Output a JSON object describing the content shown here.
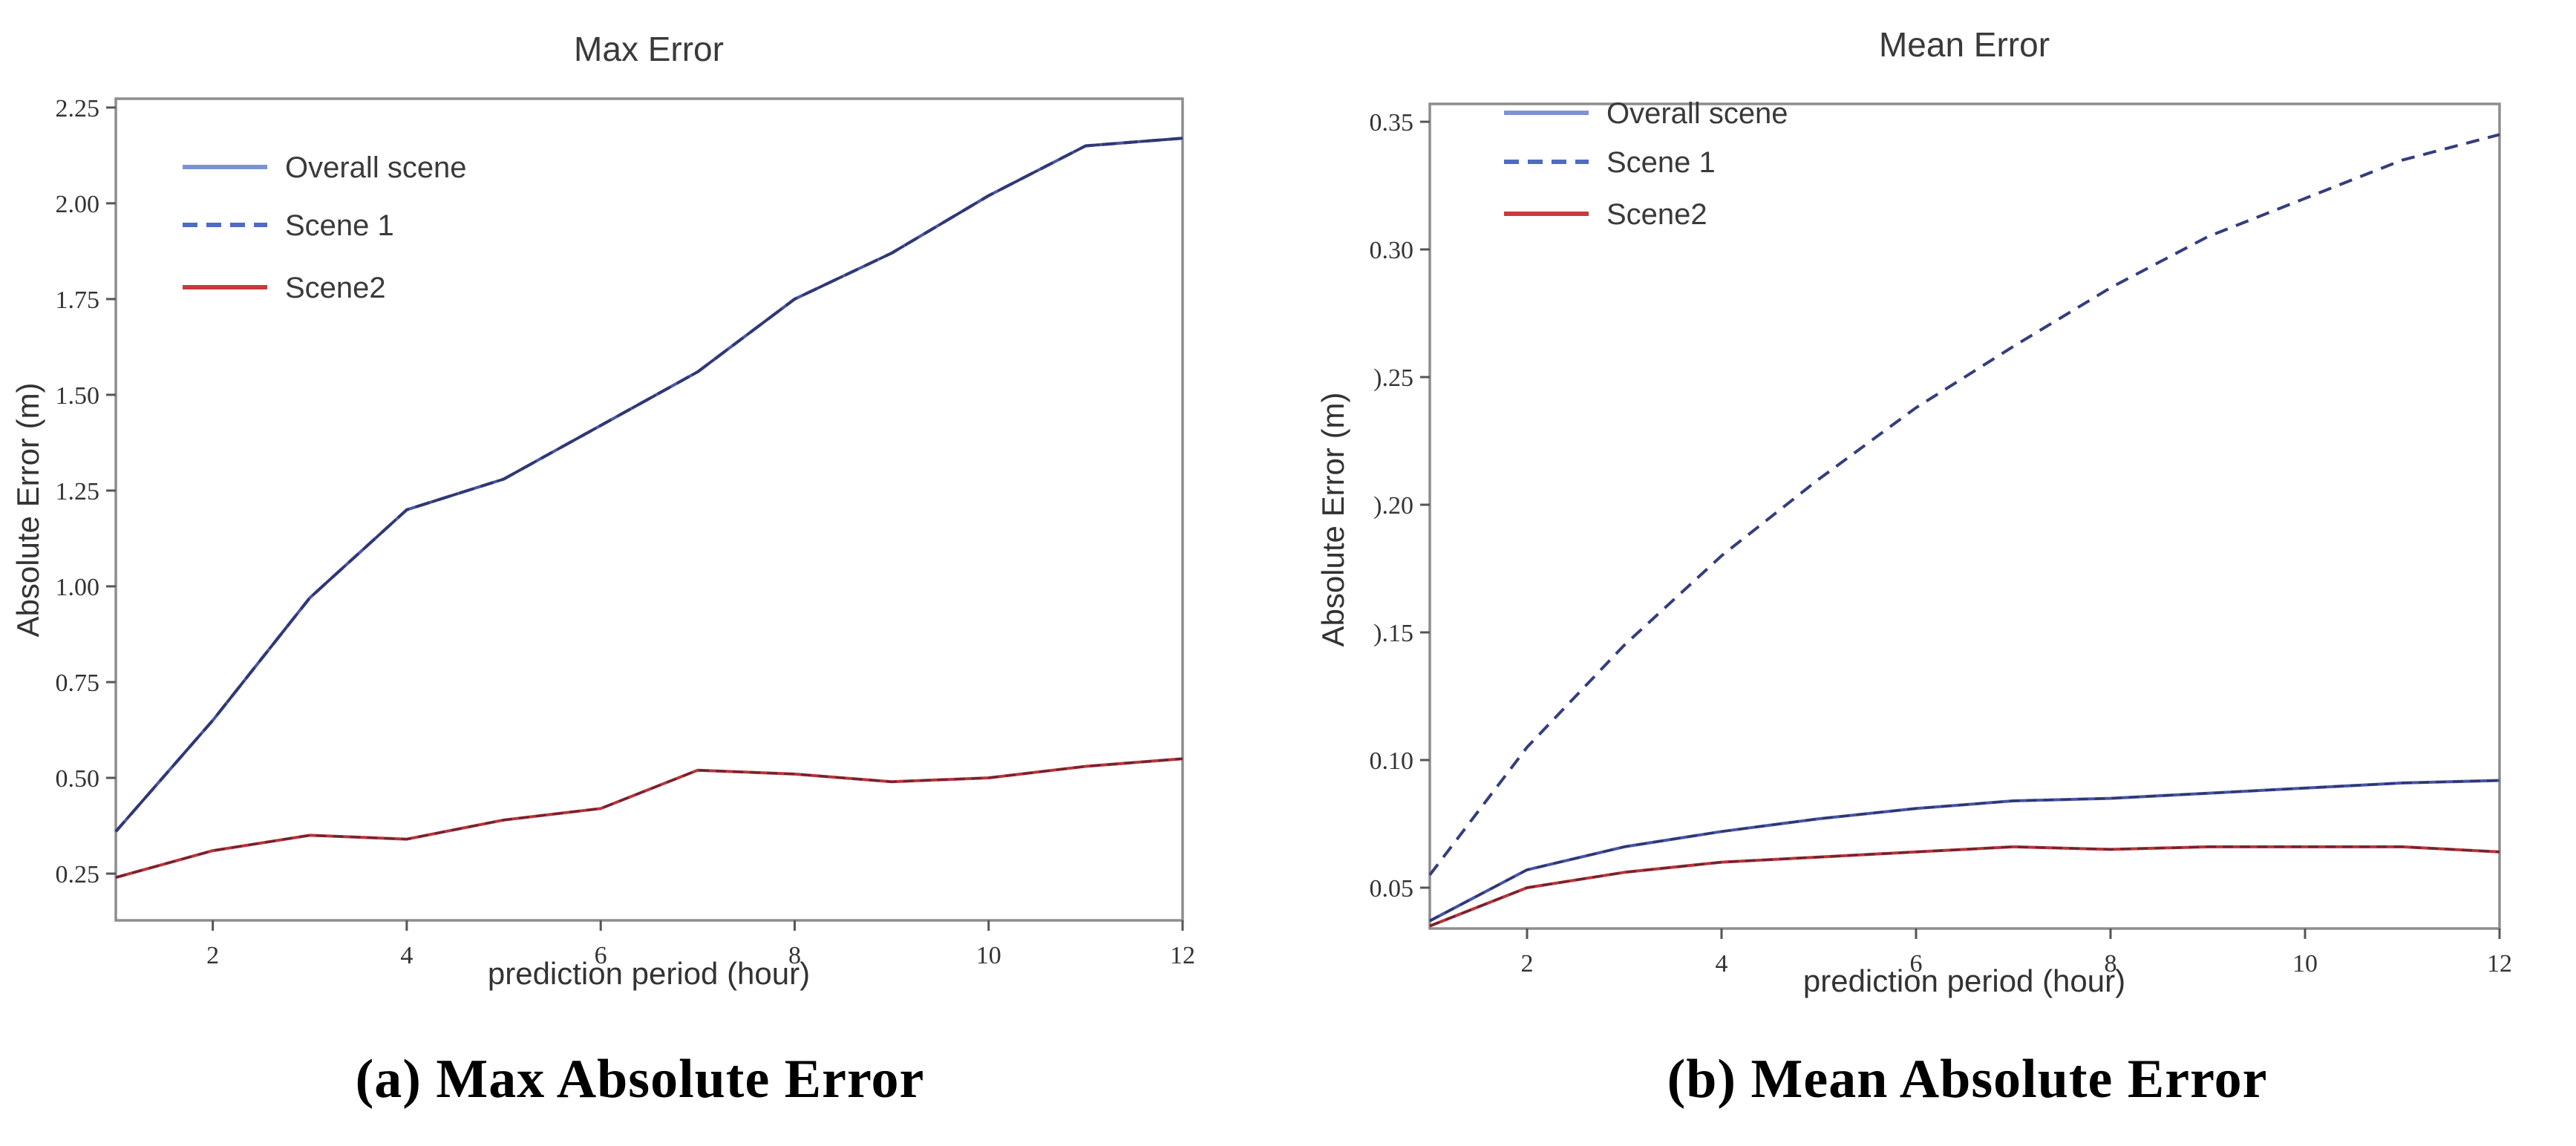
{
  "figure_background": "#ffffff",
  "spine_color": "#8d8d8d",
  "tick_color": "#555555",
  "text_color": "#333333",
  "legend_text_color": "#3a3a3a",
  "chart_data": [
    {
      "type": "line",
      "title": "Max Error",
      "xlabel": "prediction period (hour)",
      "ylabel": "Absolute Error (m)",
      "caption": "(a) Max Absolute Error",
      "x": [
        1,
        2,
        3,
        4,
        5,
        6,
        7,
        8,
        9,
        10,
        11,
        12
      ],
      "xlim": [
        1,
        12
      ],
      "ylim": [
        0.128,
        2.273
      ],
      "xticks": [
        {
          "v": 2,
          "label": "2"
        },
        {
          "v": 4,
          "label": "4"
        },
        {
          "v": 6,
          "label": "6"
        },
        {
          "v": 8,
          "label": "8"
        },
        {
          "v": 10,
          "label": "10"
        },
        {
          "v": 12,
          "label": "12"
        }
      ],
      "yticks": [
        {
          "v": 0.25,
          "label": "0.25"
        },
        {
          "v": 0.5,
          "label": "0.50"
        },
        {
          "v": 0.75,
          "label": "0.75"
        },
        {
          "v": 1.0,
          "label": "1.00"
        },
        {
          "v": 1.25,
          "label": "1.25"
        },
        {
          "v": 1.5,
          "label": "1.50"
        },
        {
          "v": 1.75,
          "label": "1.75"
        },
        {
          "v": 2.0,
          "label": "2.00"
        },
        {
          "v": 2.25,
          "label": "2.25"
        }
      ],
      "grid": false,
      "legend_position": "upper-left",
      "series": [
        {
          "name": "Overall scene",
          "style": "solid",
          "color": "#4a56a6",
          "legend_color": "#7d93d1",
          "values": [
            0.36,
            0.65,
            0.97,
            1.2,
            1.28,
            1.42,
            1.56,
            1.75,
            1.87,
            2.02,
            2.15,
            2.17
          ]
        },
        {
          "name": "Scene 1",
          "style": "dashed",
          "color": "#2f3876",
          "legend_color": "#4d6cc2",
          "values": [
            0.36,
            0.65,
            0.97,
            1.2,
            1.28,
            1.42,
            1.56,
            1.75,
            1.87,
            2.02,
            2.15,
            2.17
          ],
          "note": "overlaps Overall scene curve"
        },
        {
          "name": "Scene2",
          "style": "solid",
          "color": "#bb3438",
          "legend_color": "#c83a3d",
          "values": [
            0.24,
            0.31,
            0.35,
            0.34,
            0.39,
            0.42,
            0.52,
            0.51,
            0.49,
            0.5,
            0.53,
            0.55
          ]
        }
      ]
    },
    {
      "type": "line",
      "title": "Mean Error",
      "xlabel": "prediction period (hour)",
      "ylabel": "Absolute Error (m)",
      "caption": "(b) Mean Absolute Error",
      "x": [
        1,
        2,
        3,
        4,
        5,
        6,
        7,
        8,
        9,
        10,
        11,
        12
      ],
      "xlim": [
        1,
        12
      ],
      "ylim": [
        0.034,
        0.357
      ],
      "xticks": [
        {
          "v": 2,
          "label": "2"
        },
        {
          "v": 4,
          "label": "4"
        },
        {
          "v": 6,
          "label": "6"
        },
        {
          "v": 8,
          "label": "8"
        },
        {
          "v": 10,
          "label": "10"
        },
        {
          "v": 12,
          "label": "12"
        }
      ],
      "yticks": [
        {
          "v": 0.05,
          "label": "0.05"
        },
        {
          "v": 0.1,
          "label": "0.10"
        },
        {
          "v": 0.15,
          "label": ").15"
        },
        {
          "v": 0.2,
          "label": ").20"
        },
        {
          "v": 0.25,
          "label": ").25"
        },
        {
          "v": 0.3,
          "label": "0.30"
        },
        {
          "v": 0.35,
          "label": "0.35"
        }
      ],
      "grid": false,
      "legend_position": "upper-left",
      "series": [
        {
          "name": "Overall scene",
          "style": "solid",
          "color": "#4456a8",
          "legend_color": "#7d93d1",
          "values": [
            0.037,
            0.057,
            0.066,
            0.072,
            0.077,
            0.081,
            0.084,
            0.085,
            0.087,
            0.089,
            0.091,
            0.092
          ]
        },
        {
          "name": "Scene 1",
          "style": "dashed",
          "color": "#343d7e",
          "legend_color": "#4d6cc2",
          "values": [
            0.055,
            0.105,
            0.145,
            0.18,
            0.21,
            0.238,
            0.262,
            0.285,
            0.305,
            0.32,
            0.335,
            0.345
          ]
        },
        {
          "name": "Scene2",
          "style": "solid",
          "color": "#bb3438",
          "legend_color": "#c83a3d",
          "values": [
            0.035,
            0.05,
            0.056,
            0.06,
            0.062,
            0.064,
            0.066,
            0.065,
            0.066,
            0.066,
            0.066,
            0.064
          ]
        }
      ]
    }
  ]
}
